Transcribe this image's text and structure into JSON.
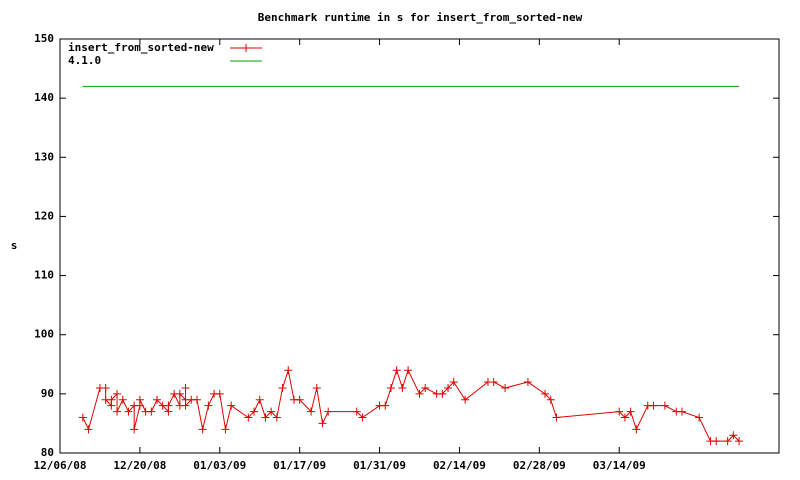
{
  "chart_data": {
    "type": "line",
    "title": "Benchmark runtime in s for insert_from_sorted-new",
    "y_label": "s",
    "xlim": [
      "12/06/08",
      "04/11/09"
    ],
    "xticks": [
      "12/06/08",
      "12/20/08",
      "01/03/09",
      "01/17/09",
      "01/31/09",
      "02/14/09",
      "02/28/09",
      "03/14/09"
    ],
    "ylim": [
      80,
      150
    ],
    "yticks": [
      80,
      90,
      100,
      110,
      120,
      130,
      140,
      150
    ],
    "grid": false,
    "legend": "top-left",
    "series": [
      {
        "name": "insert_from_sorted-new",
        "color": "#e00000",
        "marker": "+",
        "x": [
          "12/10/08",
          "12/11/08",
          "12/13/08",
          "12/14/08",
          "12/14/08",
          "12/15/08",
          "12/15/08",
          "12/16/08",
          "12/16/08",
          "12/17/08",
          "12/18/08",
          "12/19/08",
          "12/19/08",
          "12/20/08",
          "12/20/08",
          "12/21/08",
          "12/22/08",
          "12/23/08",
          "12/24/08",
          "12/25/08",
          "12/25/08",
          "12/26/08",
          "12/27/08",
          "12/27/08",
          "12/28/08",
          "12/28/08",
          "12/28/08",
          "12/29/08",
          "12/30/08",
          "12/31/08",
          "01/01/09",
          "01/02/09",
          "01/03/09",
          "01/04/09",
          "01/05/09",
          "01/08/09",
          "01/09/09",
          "01/10/09",
          "01/11/09",
          "01/12/09",
          "01/13/09",
          "01/14/09",
          "01/15/09",
          "01/16/09",
          "01/17/09",
          "01/19/09",
          "01/20/09",
          "01/21/09",
          "01/22/09",
          "01/27/09",
          "01/28/09",
          "01/31/09",
          "02/01/09",
          "02/02/09",
          "02/03/09",
          "02/04/09",
          "02/05/09",
          "02/07/09",
          "02/08/09",
          "02/10/09",
          "02/11/09",
          "02/12/09",
          "02/13/09",
          "02/15/09",
          "02/19/09",
          "02/20/09",
          "02/22/09",
          "02/26/09",
          "03/01/09",
          "03/02/09",
          "03/03/09",
          "03/14/09",
          "03/15/09",
          "03/16/09",
          "03/17/09",
          "03/19/09",
          "03/20/09",
          "03/22/09",
          "03/24/09",
          "03/25/09",
          "03/28/09",
          "03/30/09",
          "03/31/09",
          "04/02/09",
          "04/03/09",
          "04/04/09"
        ],
        "values": [
          86,
          84,
          91,
          91,
          89,
          88,
          89,
          90,
          87,
          89,
          87,
          88,
          84,
          88,
          89,
          87,
          87,
          89,
          88,
          87,
          88,
          90,
          88,
          90,
          89,
          91,
          88,
          89,
          89,
          84,
          88,
          90,
          90,
          84,
          88,
          86,
          87,
          89,
          86,
          87,
          86,
          91,
          94,
          89,
          89,
          87,
          91,
          85,
          87,
          87,
          86,
          88,
          88,
          91,
          94,
          91,
          94,
          90,
          91,
          90,
          90,
          91,
          92,
          89,
          92,
          92,
          91,
          92,
          90,
          89,
          86,
          87,
          86,
          87,
          84,
          88,
          88,
          88,
          87,
          87,
          86,
          82,
          82,
          82,
          83,
          82
        ]
      },
      {
        "name": "4.1.0",
        "color": "#00a000",
        "x": [
          "12/10/08",
          "04/04/09"
        ],
        "values": [
          142,
          142
        ]
      }
    ]
  }
}
